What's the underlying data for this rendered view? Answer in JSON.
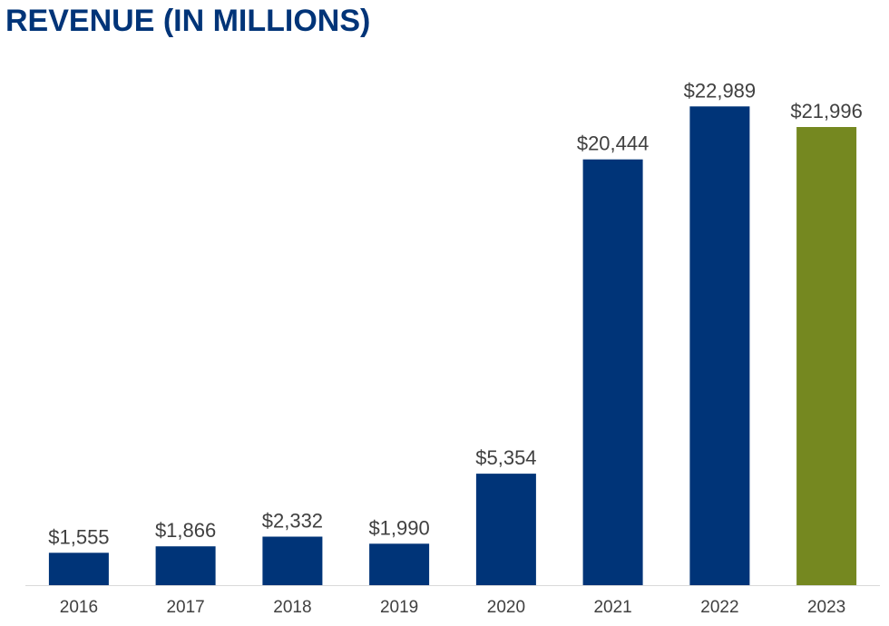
{
  "title": "REVENUE (IN MILLIONS)",
  "colors": {
    "title": "#003478",
    "primary_bar": "#003478",
    "highlight_bar": "#758820",
    "axis": "#d9d9d9",
    "label": "#404040"
  },
  "chart_data": {
    "type": "bar",
    "title": "REVENUE (IN MILLIONS)",
    "xlabel": "",
    "ylabel": "",
    "ylim": [
      0,
      23000
    ],
    "grid": false,
    "categories": [
      "2016",
      "2017",
      "2018",
      "2019",
      "2020",
      "2021",
      "2022",
      "2023"
    ],
    "values": [
      1555,
      1866,
      2332,
      1990,
      5354,
      20444,
      22989,
      21996
    ],
    "data_labels": [
      "$1,555",
      "$1,866",
      "$2,332",
      "$1,990",
      "$5,354",
      "$20,444",
      "$22,989",
      "$21,996"
    ],
    "highlight_index": 7
  }
}
